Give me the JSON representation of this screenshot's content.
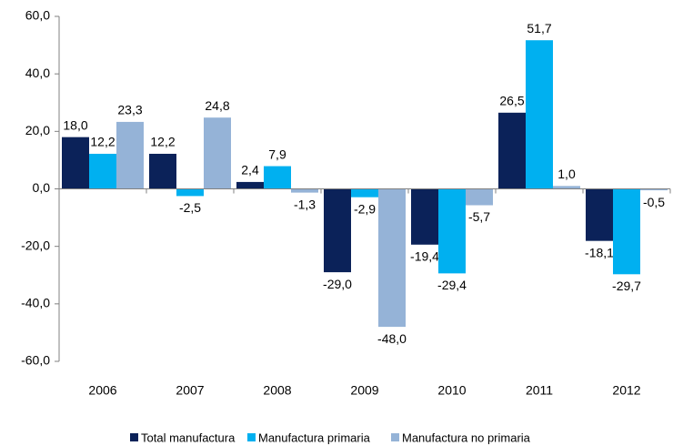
{
  "chart_data": {
    "type": "bar",
    "categories": [
      "2006",
      "2007",
      "2008",
      "2009",
      "2010",
      "2011",
      "2012"
    ],
    "series": [
      {
        "name": "Total manufactura",
        "color": "#0b2259",
        "values": [
          18.0,
          12.2,
          2.4,
          -29.0,
          -19.4,
          26.5,
          -18.1
        ],
        "value_labels": [
          "18,0",
          "12,2",
          "2,4",
          "-29,0",
          "-19,4",
          "26,5",
          "-18,1"
        ]
      },
      {
        "name": "Manufactura primaria",
        "color": "#00b0f0",
        "values": [
          12.2,
          -2.5,
          7.9,
          -2.9,
          -29.4,
          51.7,
          -29.7
        ],
        "value_labels": [
          "12,2",
          "-2,5",
          "7,9",
          "-2,9",
          "-29,4",
          "51,7",
          "-29,7"
        ]
      },
      {
        "name": "Manufactura no primaria",
        "color": "#95b3d7",
        "values": [
          23.3,
          24.8,
          -1.3,
          -48.0,
          -5.7,
          1.0,
          -0.5
        ],
        "value_labels": [
          "23,3",
          "24,8",
          "-1,3",
          "-48,0",
          "-5,7",
          "1,0",
          "-0,5"
        ]
      }
    ],
    "ylim": [
      -60,
      60
    ],
    "yticks": [
      {
        "value": -60,
        "label": "-60,0"
      },
      {
        "value": -40,
        "label": "-40,0"
      },
      {
        "value": -20,
        "label": "-20,0"
      },
      {
        "value": 0,
        "label": "0,0"
      },
      {
        "value": 20,
        "label": "20,0"
      },
      {
        "value": 40,
        "label": "40,0"
      },
      {
        "value": 60,
        "label": "60,0"
      }
    ],
    "legend": "bottom",
    "grid": false
  }
}
